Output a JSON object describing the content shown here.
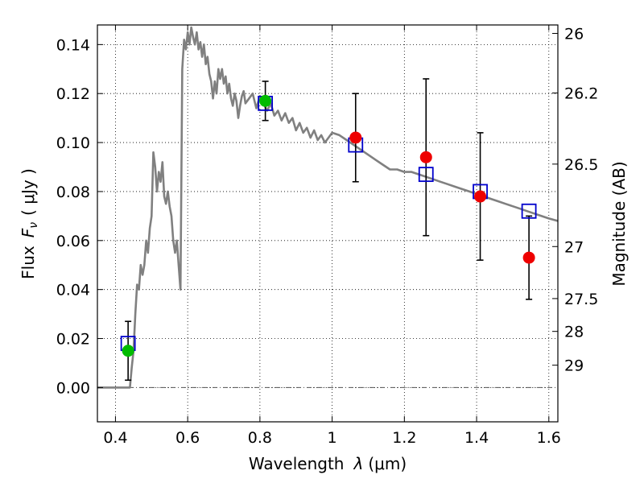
{
  "chart_data": {
    "type": "scatter",
    "title": "",
    "xlabel_text": "Wavelength",
    "xlabel_symbol": "λ",
    "xlabel_unit": "(μm)",
    "ylabel_text": "Flux",
    "ylabel_symbol": "F",
    "ylabel_sub": "ν",
    "ylabel_unit": "( μJy )",
    "y2label": "Magnitude (AB)",
    "xlim": [
      0.35,
      1.625
    ],
    "ylim": [
      -0.014,
      0.148
    ],
    "x_ticks": [
      0.4,
      0.6,
      0.8,
      1.0,
      1.2,
      1.4,
      1.6
    ],
    "x_tick_labels": [
      "0.4",
      "0.6",
      "0.8",
      "1",
      "1.2",
      "1.4",
      "1.6"
    ],
    "y_ticks": [
      0.0,
      0.02,
      0.04,
      0.06,
      0.08,
      0.1,
      0.12,
      0.14
    ],
    "y_tick_labels": [
      "0.00",
      "0.02",
      "0.04",
      "0.06",
      "0.08",
      "0.10",
      "0.12",
      "0.14"
    ],
    "mag_ticks": [
      26,
      26.2,
      26.5,
      27,
      27.5,
      28,
      29
    ],
    "mag_tick_labels": [
      "26",
      "26.2",
      "26.5",
      "27",
      "27.5",
      "28",
      "29"
    ],
    "grid": true,
    "colors": {
      "model": "#808080",
      "model_points": "#0000cc",
      "detection_green": "#00bb00",
      "detection_red": "#ee0000",
      "errorbar": "#000000",
      "zero_line": "#555555"
    },
    "series": [
      {
        "name": "model spectrum",
        "kind": "line",
        "x": [
          0.35,
          0.43,
          0.44,
          0.445,
          0.45,
          0.455,
          0.46,
          0.465,
          0.47,
          0.475,
          0.48,
          0.485,
          0.49,
          0.495,
          0.5,
          0.505,
          0.51,
          0.515,
          0.52,
          0.525,
          0.53,
          0.535,
          0.54,
          0.545,
          0.55,
          0.555,
          0.56,
          0.565,
          0.57,
          0.575,
          0.58,
          0.585,
          0.59,
          0.595,
          0.6,
          0.605,
          0.61,
          0.615,
          0.62,
          0.625,
          0.63,
          0.635,
          0.64,
          0.645,
          0.65,
          0.655,
          0.66,
          0.665,
          0.67,
          0.675,
          0.68,
          0.685,
          0.69,
          0.695,
          0.7,
          0.705,
          0.71,
          0.715,
          0.72,
          0.725,
          0.73,
          0.735,
          0.74,
          0.745,
          0.75,
          0.755,
          0.76,
          0.77,
          0.78,
          0.79,
          0.8,
          0.81,
          0.82,
          0.83,
          0.84,
          0.85,
          0.86,
          0.87,
          0.88,
          0.89,
          0.9,
          0.91,
          0.92,
          0.93,
          0.94,
          0.95,
          0.96,
          0.97,
          0.98,
          0.99,
          1.0,
          1.02,
          1.04,
          1.06,
          1.08,
          1.1,
          1.12,
          1.14,
          1.16,
          1.18,
          1.2,
          1.22,
          1.24,
          1.26,
          1.28,
          1.3,
          1.32,
          1.34,
          1.36,
          1.38,
          1.4,
          1.42,
          1.44,
          1.46,
          1.48,
          1.5,
          1.52,
          1.54,
          1.56,
          1.58,
          1.6,
          1.625
        ],
        "y": [
          0.0,
          0.0,
          0.0,
          0.008,
          0.015,
          0.03,
          0.042,
          0.04,
          0.05,
          0.046,
          0.05,
          0.06,
          0.055,
          0.065,
          0.07,
          0.096,
          0.09,
          0.08,
          0.088,
          0.084,
          0.092,
          0.078,
          0.075,
          0.08,
          0.074,
          0.07,
          0.06,
          0.055,
          0.06,
          0.05,
          0.04,
          0.13,
          0.142,
          0.138,
          0.145,
          0.14,
          0.147,
          0.143,
          0.14,
          0.145,
          0.138,
          0.141,
          0.135,
          0.14,
          0.132,
          0.135,
          0.128,
          0.125,
          0.118,
          0.125,
          0.12,
          0.13,
          0.126,
          0.13,
          0.124,
          0.127,
          0.12,
          0.124,
          0.118,
          0.115,
          0.12,
          0.117,
          0.11,
          0.115,
          0.119,
          0.121,
          0.116,
          0.118,
          0.12,
          0.114,
          0.119,
          0.116,
          0.113,
          0.116,
          0.111,
          0.113,
          0.109,
          0.112,
          0.108,
          0.11,
          0.105,
          0.108,
          0.104,
          0.106,
          0.102,
          0.105,
          0.101,
          0.103,
          0.1,
          0.102,
          0.104,
          0.103,
          0.101,
          0.099,
          0.097,
          0.095,
          0.093,
          0.091,
          0.089,
          0.089,
          0.088,
          0.088,
          0.087,
          0.086,
          0.085,
          0.084,
          0.083,
          0.082,
          0.081,
          0.08,
          0.079,
          0.078,
          0.077,
          0.076,
          0.075,
          0.074,
          0.073,
          0.072,
          0.071,
          0.07,
          0.069,
          0.068
        ]
      },
      {
        "name": "model photometry",
        "kind": "squares",
        "x": [
          0.435,
          0.815,
          1.065,
          1.26,
          1.41,
          1.545
        ],
        "y": [
          0.018,
          0.116,
          0.099,
          0.087,
          0.08,
          0.072
        ]
      },
      {
        "name": "optical detections",
        "kind": "points",
        "x": [
          0.435,
          0.815
        ],
        "y": [
          0.015,
          0.117
        ],
        "err": [
          0.012,
          0.008
        ]
      },
      {
        "name": "infrared detections",
        "kind": "points",
        "x": [
          1.065,
          1.26,
          1.41,
          1.545
        ],
        "y": [
          0.102,
          0.094,
          0.078,
          0.053
        ],
        "err": [
          0.018,
          0.032,
          0.026,
          0.017
        ]
      }
    ]
  }
}
